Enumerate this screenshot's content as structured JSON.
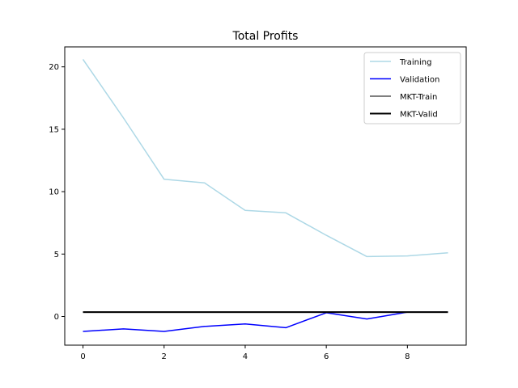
{
  "chart_data": {
    "type": "line",
    "title": "Total Profits",
    "xlabel": "",
    "ylabel": "",
    "xlim": [
      -0.45,
      9.45
    ],
    "ylim": [
      -2.3,
      21.6
    ],
    "xticks": [
      0,
      2,
      4,
      6,
      8
    ],
    "yticks": [
      0,
      5,
      10,
      15,
      20
    ],
    "grid": false,
    "legend_position": "top-right",
    "x": [
      0,
      1,
      2,
      3,
      4,
      5,
      6,
      7,
      8,
      9
    ],
    "series": [
      {
        "name": "Training",
        "color": "#add8e6",
        "values": [
          20.6,
          15.9,
          11.0,
          10.7,
          8.5,
          8.3,
          6.5,
          4.8,
          4.85,
          5.1
        ]
      },
      {
        "name": "Validation",
        "color": "#0000ff",
        "values": [
          -1.2,
          -1.0,
          -1.2,
          -0.8,
          -0.6,
          -0.9,
          0.3,
          -0.2,
          0.35,
          0.35
        ]
      },
      {
        "name": "MKT-Train",
        "color": "#808080",
        "values": [
          0.35,
          0.35,
          0.35,
          0.35,
          0.35,
          0.35,
          0.35,
          0.35,
          0.35,
          0.35
        ]
      },
      {
        "name": "MKT-Valid",
        "color": "#000000",
        "values": [
          0.35,
          0.35,
          0.35,
          0.35,
          0.35,
          0.35,
          0.35,
          0.35,
          0.35,
          0.35
        ]
      }
    ]
  }
}
